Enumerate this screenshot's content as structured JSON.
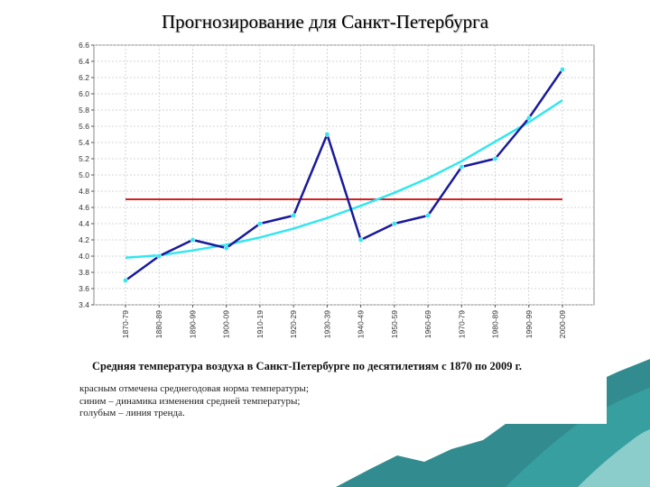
{
  "slide": {
    "title": "Прогнозирование для Санкт-Петербурга",
    "caption": "Средняя температура воздуха в Санкт-Петербурге по десятилетиям с 1870 по 2009 г.",
    "notes": [
      "красным отмечена среднегодовая норма температуры;",
      "синим – динамика изменения средней температуры;",
      "голубым – линия тренда."
    ]
  },
  "colors": {
    "norm": "#d42020",
    "actual": "#1a1a9c",
    "trend": "#33e6f0",
    "marker": "#33e6f0",
    "grid": "#c9c9c9",
    "decor_teal": "#1c7f83"
  },
  "chart_data": {
    "type": "line",
    "categories": [
      "1870-79",
      "1880-89",
      "1890-99",
      "1900-09",
      "1910-19",
      "1920-29",
      "1930-39",
      "1940-49",
      "1950-59",
      "1960-69",
      "1970-79",
      "1980-89",
      "1990-99",
      "2000-09"
    ],
    "yticks": [
      "3.4",
      "3.6",
      "3.8",
      "4.0",
      "4.2",
      "4.4",
      "4.6",
      "4.8",
      "5.0",
      "5.2",
      "5.4",
      "5.6",
      "5.8",
      "6.0",
      "6.2",
      "6.4",
      "6.6"
    ],
    "ylim": [
      3.4,
      6.6
    ],
    "grid": true,
    "series": [
      {
        "role": "actual",
        "values": [
          3.7,
          4.0,
          4.2,
          4.1,
          4.4,
          4.5,
          5.5,
          4.2,
          4.4,
          4.5,
          5.1,
          5.2,
          5.7,
          6.3
        ]
      },
      {
        "role": "trend",
        "values": [
          3.98,
          4.01,
          4.07,
          4.14,
          4.23,
          4.34,
          4.47,
          4.62,
          4.78,
          4.96,
          5.17,
          5.41,
          5.65,
          5.92
        ]
      },
      {
        "role": "norm",
        "values": [
          4.7,
          4.7,
          4.7,
          4.7,
          4.7,
          4.7,
          4.7,
          4.7,
          4.7,
          4.7,
          4.7,
          4.7,
          4.7,
          4.7
        ]
      }
    ]
  }
}
